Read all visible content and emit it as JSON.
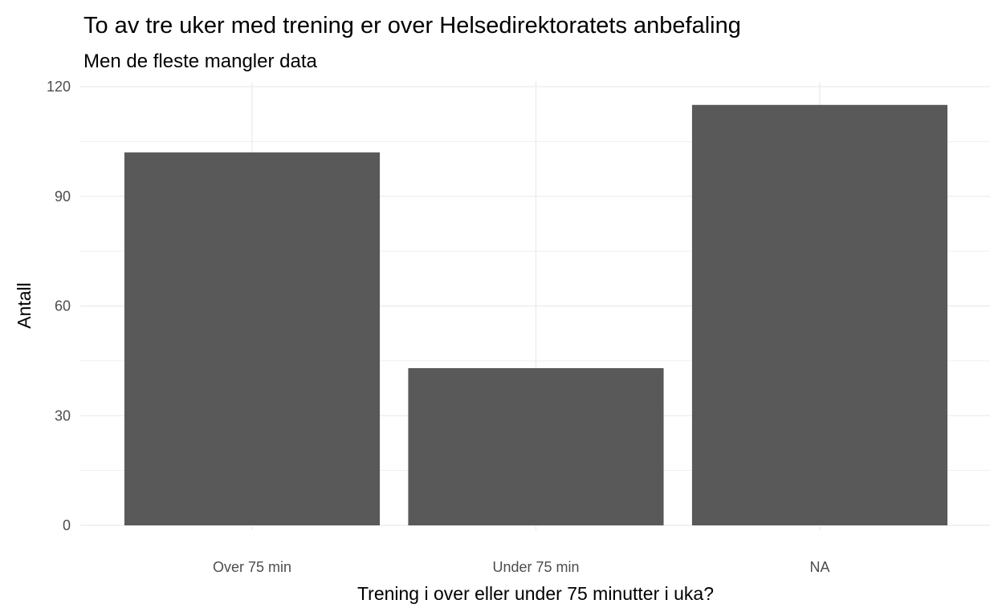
{
  "chart_data": {
    "type": "bar",
    "title": "To av tre uker med trening er over Helsedirektoratets anbefaling",
    "subtitle": "Men de fleste mangler data",
    "xlabel": "Trening i over eller under 75 minutter i uka?",
    "ylabel": "Antall",
    "categories": [
      "Over 75 min",
      "Under 75 min",
      "NA"
    ],
    "values": [
      102,
      43,
      115
    ],
    "ylim": [
      0,
      120
    ],
    "yticks": [
      0,
      30,
      60,
      90,
      120
    ],
    "grid": true,
    "bar_color": "#595959",
    "grid_color": "#ebebeb"
  }
}
